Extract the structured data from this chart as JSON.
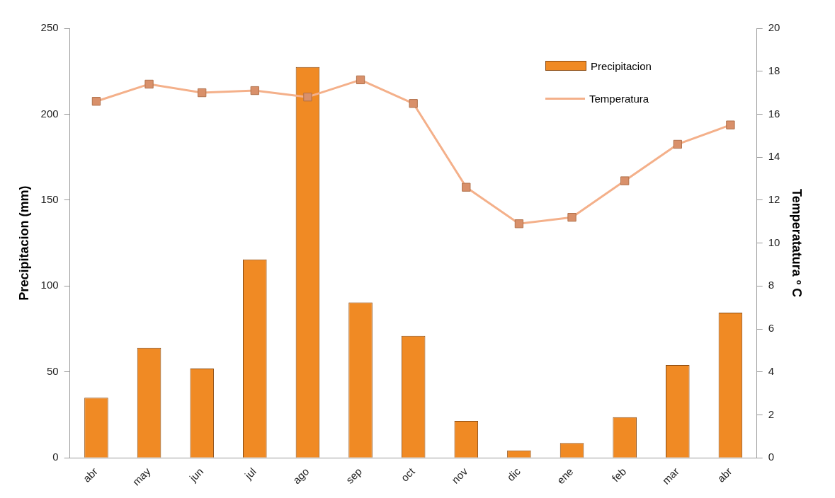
{
  "chart_data": {
    "type": "bar",
    "categories": [
      "abr",
      "may",
      "jun",
      "jul",
      "ago",
      "sep",
      "oct",
      "nov",
      "dic",
      "ene",
      "feb",
      "mar",
      "abr"
    ],
    "ylabel": "Precipitacion (mm)",
    "y2label": "Temperatatura º C",
    "ylim": [
      0,
      250
    ],
    "yticks": [
      0,
      50,
      100,
      150,
      200,
      250
    ],
    "y2lim": [
      0,
      20
    ],
    "y2ticks": [
      0,
      2,
      4,
      6,
      8,
      10,
      12,
      14,
      16,
      18,
      20
    ],
    "grid": false,
    "legend": "top right",
    "marker": "square",
    "series": [
      {
        "name": "Precipitacion",
        "color": "#f08a24",
        "values": [
          35,
          64,
          52,
          115.5,
          227.5,
          90.5,
          71,
          21.5,
          4.3,
          8.6,
          23.7,
          54,
          84.5
        ]
      },
      {
        "name": "Temperatura",
        "type": "line",
        "axis": "y2",
        "color": "#f4b08a",
        "values": [
          16.6,
          17.4,
          17.0,
          17.1,
          16.8,
          17.6,
          16.5,
          12.6,
          10.9,
          11.2,
          12.9,
          14.6,
          15.5
        ]
      }
    ]
  }
}
